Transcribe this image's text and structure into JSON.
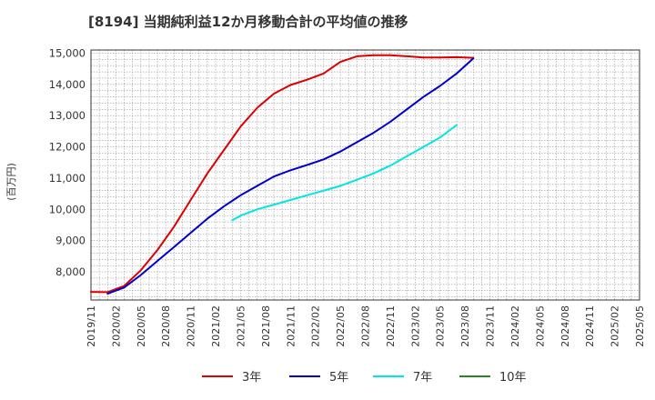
{
  "chart_data": {
    "type": "line",
    "title": "[8194]  当期純利益12か月移動合計の平均値の推移",
    "ylabel": "(百万円)",
    "xlabel": "",
    "ylim": [
      7100,
      15100
    ],
    "yticks": [
      8000,
      9000,
      10000,
      11000,
      12000,
      13000,
      14000,
      15000
    ],
    "ytick_labels": [
      "8,000",
      "9,000",
      "10,000",
      "11,000",
      "12,000",
      "13,000",
      "14,000",
      "15,000"
    ],
    "xticks": [
      "2019/11",
      "2020/02",
      "2020/05",
      "2020/08",
      "2020/11",
      "2021/02",
      "2021/05",
      "2021/08",
      "2021/11",
      "2022/02",
      "2022/05",
      "2022/08",
      "2022/11",
      "2023/02",
      "2023/05",
      "2023/08",
      "2023/11",
      "2024/02",
      "2024/05",
      "2024/08",
      "2024/11",
      "2025/02",
      "2025/05"
    ],
    "grid": true,
    "legend_position": "bottom",
    "series": [
      {
        "name": "3年",
        "color": "#dd0000",
        "points": [
          [
            0,
            7360
          ],
          [
            2,
            7350
          ],
          [
            4,
            7550
          ],
          [
            6,
            8050
          ],
          [
            8,
            8700
          ],
          [
            10,
            9450
          ],
          [
            12,
            10300
          ],
          [
            14,
            11150
          ],
          [
            16,
            11900
          ],
          [
            18,
            12650
          ],
          [
            20,
            13250
          ],
          [
            22,
            13700
          ],
          [
            24,
            13980
          ],
          [
            26,
            14150
          ],
          [
            28,
            14350
          ],
          [
            30,
            14720
          ],
          [
            32,
            14900
          ],
          [
            34,
            14930
          ],
          [
            36,
            14930
          ],
          [
            38,
            14900
          ],
          [
            40,
            14860
          ],
          [
            42,
            14860
          ],
          [
            44,
            14870
          ],
          [
            46,
            14850
          ]
        ]
      },
      {
        "name": "5年",
        "color": "#0000cc",
        "points": [
          [
            2,
            7300
          ],
          [
            4,
            7500
          ],
          [
            6,
            7900
          ],
          [
            8,
            8350
          ],
          [
            10,
            8800
          ],
          [
            12,
            9250
          ],
          [
            14,
            9700
          ],
          [
            16,
            10100
          ],
          [
            18,
            10450
          ],
          [
            20,
            10750
          ],
          [
            22,
            11050
          ],
          [
            24,
            11250
          ],
          [
            26,
            11420
          ],
          [
            28,
            11600
          ],
          [
            30,
            11850
          ],
          [
            32,
            12150
          ],
          [
            34,
            12450
          ],
          [
            36,
            12800
          ],
          [
            38,
            13200
          ],
          [
            40,
            13600
          ],
          [
            42,
            13950
          ],
          [
            44,
            14350
          ],
          [
            46,
            14830
          ]
        ]
      },
      {
        "name": "7年",
        "color": "#00e5e5",
        "points": [
          [
            17,
            9650
          ],
          [
            18,
            9800
          ],
          [
            20,
            10000
          ],
          [
            22,
            10150
          ],
          [
            24,
            10300
          ],
          [
            26,
            10450
          ],
          [
            28,
            10600
          ],
          [
            30,
            10750
          ],
          [
            32,
            10950
          ],
          [
            34,
            11150
          ],
          [
            36,
            11400
          ],
          [
            38,
            11700
          ],
          [
            40,
            12000
          ],
          [
            42,
            12300
          ],
          [
            44,
            12700
          ]
        ]
      },
      {
        "name": "10年",
        "color": "#228822",
        "points": []
      }
    ]
  }
}
